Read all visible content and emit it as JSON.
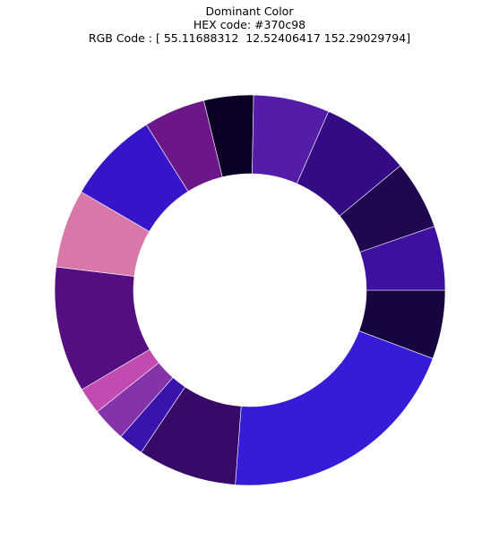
{
  "chart_data": {
    "type": "pie",
    "style": "donut",
    "title": [
      "Dominant Color",
      "HEX code: #370c98",
      "RGB Code : [ 55.11688312  12.52406417 152.29029794]"
    ],
    "start_angle_deg": 0,
    "direction": "clockwise",
    "slices": [
      {
        "value": 5.7,
        "color": "#170540"
      },
      {
        "value": 20.5,
        "color": "#351dd8"
      },
      {
        "value": 8.2,
        "color": "#370a6a"
      },
      {
        "value": 2.1,
        "color": "#3a12ac"
      },
      {
        "value": 2.8,
        "color": "#8433a8"
      },
      {
        "value": 2.2,
        "color": "#c14bb0"
      },
      {
        "value": 10.4,
        "color": "#540e80"
      },
      {
        "value": 6.5,
        "color": "#d778a9"
      },
      {
        "value": 7.7,
        "color": "#3814c9"
      },
      {
        "value": 5.1,
        "color": "#6c1788"
      },
      {
        "value": 4.1,
        "color": "#0c0124"
      },
      {
        "value": 6.3,
        "color": "#551ca8"
      },
      {
        "value": 7.4,
        "color": "#330b84"
      },
      {
        "value": 5.7,
        "color": "#210650"
      },
      {
        "value": 5.3,
        "color": "#3e10a0"
      }
    ]
  }
}
